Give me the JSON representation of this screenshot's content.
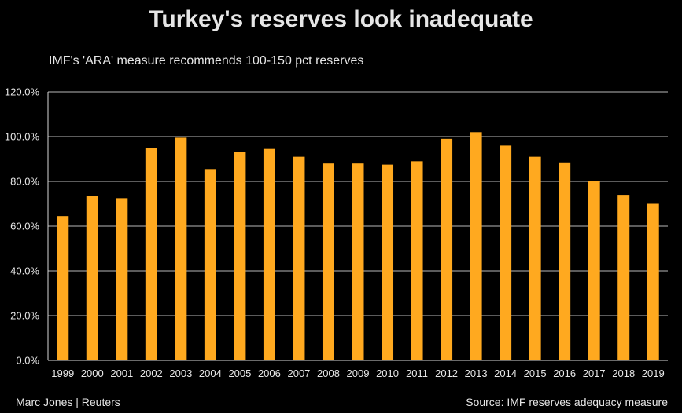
{
  "header": {
    "title": "Turkey's reserves look inadequate",
    "subtitle": "IMF's 'ARA' measure recommends 100-150 pct reserves"
  },
  "footer": {
    "credit": "Marc Jones | Reuters",
    "source": "Source: IMF reserves adequacy measure"
  },
  "colors": {
    "bar": "#ffa91f",
    "grid": "#d9d9d9",
    "axis": "#d9d9d9",
    "text": "#e6e6e6",
    "background": "#000000"
  },
  "chart_data": {
    "type": "bar",
    "title": "Turkey's reserves look inadequate",
    "subtitle": "IMF's 'ARA' measure recommends 100-150 pct reserves",
    "xlabel": "",
    "ylabel": "",
    "ylim": [
      0,
      120
    ],
    "yticks": [
      0,
      20,
      40,
      60,
      80,
      100,
      120
    ],
    "ytick_labels": [
      "0.0%",
      "20.0%",
      "40.0%",
      "60.0%",
      "80.0%",
      "100.0%",
      "120.0%"
    ],
    "grid": true,
    "legend": "none",
    "categories": [
      "1999",
      "2000",
      "2001",
      "2002",
      "2003",
      "2004",
      "2005",
      "2006",
      "2007",
      "2008",
      "2009",
      "2010",
      "2011",
      "2012",
      "2013",
      "2014",
      "2015",
      "2016",
      "2017",
      "2018",
      "2019"
    ],
    "values": [
      64.5,
      73.5,
      72.5,
      95.0,
      99.5,
      85.5,
      93.0,
      94.5,
      91.0,
      88.0,
      88.0,
      87.5,
      89.0,
      99.0,
      102.0,
      96.0,
      91.0,
      88.5,
      80.0,
      74.0,
      70.0
    ]
  }
}
